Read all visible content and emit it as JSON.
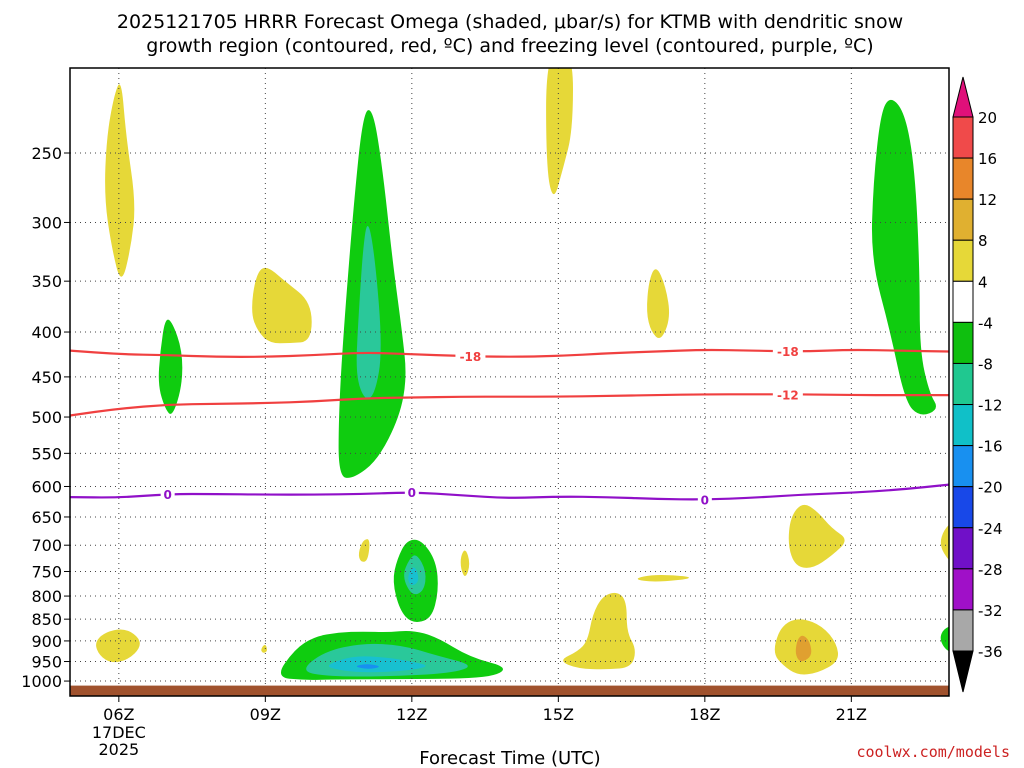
{
  "chart_data": {
    "type": "contour",
    "title_line1": "2025121705 HRRR Forecast Omega (shaded, μbar/s) for KTMB with dendritic snow",
    "title_line2": "growth region (contoured, red, ºC) and freezing level (contoured, purple, ºC)",
    "xlabel": "Forecast Time (UTC)",
    "x_ticks": [
      {
        "hour": 6,
        "label": "06Z",
        "sub1": "17DEC",
        "sub2": "2025"
      },
      {
        "hour": 9,
        "label": "09Z"
      },
      {
        "hour": 12,
        "label": "12Z"
      },
      {
        "hour": 15,
        "label": "15Z"
      },
      {
        "hour": 18,
        "label": "18Z"
      },
      {
        "hour": 21,
        "label": "21Z"
      }
    ],
    "x_range_hours": [
      5,
      23
    ],
    "y_ticks": [
      250,
      300,
      350,
      400,
      450,
      500,
      550,
      600,
      650,
      700,
      750,
      800,
      850,
      900,
      950,
      1000
    ],
    "y_range_hPa": [
      200,
      1040
    ],
    "colorbar": {
      "labels": [
        "20",
        "16",
        "12",
        "8",
        "4",
        "-4",
        "-8",
        "-12",
        "-16",
        "-20",
        "-24",
        "-28",
        "-32",
        "-36"
      ],
      "colors": [
        "#e0107a",
        "#f04a4a",
        "#e8862a",
        "#e0b030",
        "#e6d838",
        "#ffffff",
        "#0fbf0f",
        "#20c890",
        "#10c0c8",
        "#1890f0",
        "#1848e8",
        "#7010c8",
        "#a010c8",
        "#a8a8a8",
        "#000000"
      ]
    },
    "shading": {
      "green": "#0fcc0f",
      "teal": "#2ac89a",
      "cyan": "#18c0d0",
      "blue": "#1890f0",
      "yellow": "#e6d838",
      "orange": "#e0a030"
    },
    "terrain_color": "#a0522d",
    "contours": [
      {
        "name": "dgz-minus18",
        "label": "-18",
        "color": "#f04040",
        "hours": [
          5,
          6,
          7,
          8,
          9,
          10,
          11,
          12,
          13,
          14,
          15,
          16,
          17,
          18,
          19,
          20,
          21,
          22,
          23
        ],
        "hPa": [
          420,
          424,
          425,
          427,
          427,
          425,
          422,
          424,
          426,
          427,
          426,
          423,
          421,
          419,
          420,
          421,
          419,
          420,
          421
        ],
        "label_hours": [
          13.2,
          19.7
        ]
      },
      {
        "name": "dgz-minus12",
        "label": "-12",
        "color": "#f04040",
        "hours": [
          5,
          6,
          7,
          8,
          9,
          10,
          11,
          12,
          13,
          14,
          15,
          16,
          17,
          18,
          19,
          20,
          21,
          22,
          23
        ],
        "hPa": [
          498,
          489,
          484,
          483,
          482,
          480,
          476,
          475,
          474,
          474,
          474,
          473,
          472,
          471,
          471,
          471,
          472,
          472,
          472
        ],
        "label_hours": [
          19.7
        ]
      },
      {
        "name": "freezing-level",
        "label": "0",
        "color": "#9010c8",
        "hours": [
          5,
          6,
          7,
          8,
          9,
          10,
          11,
          12,
          13,
          14,
          15,
          16,
          17,
          18,
          19,
          20,
          21,
          22,
          23
        ],
        "hPa": [
          617,
          618,
          612,
          612,
          613,
          613,
          612,
          609,
          614,
          619,
          616,
          617,
          620,
          621,
          618,
          613,
          610,
          605,
          597
        ],
        "label_hours": [
          7,
          12,
          18
        ]
      }
    ]
  },
  "credit": "coolwx.com/models"
}
